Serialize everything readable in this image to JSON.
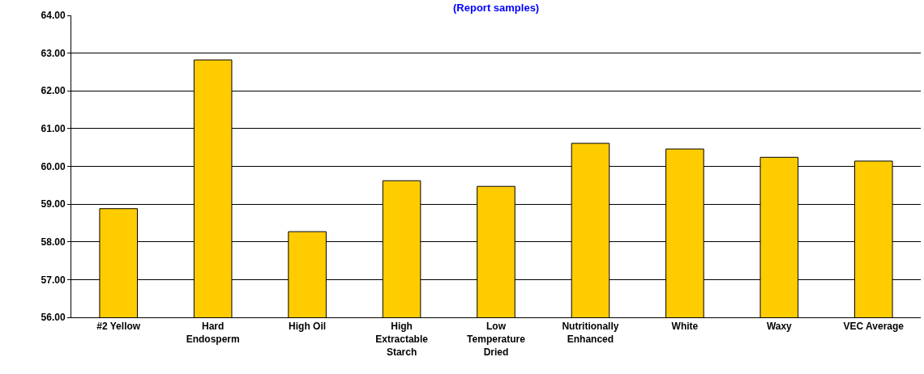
{
  "chart_data": {
    "type": "bar",
    "subtitle": "(Report samples)",
    "categories": [
      "#2 Yellow",
      "Hard Endosperm",
      "High Oil",
      "High Extractable Starch",
      "Low Temperature Dried",
      "Nutritionally Enhanced",
      "White",
      "Waxy",
      "VEC Average"
    ],
    "values": [
      58.88,
      62.82,
      58.27,
      59.62,
      59.47,
      60.61,
      60.46,
      60.24,
      60.14
    ],
    "color": "#ffcc00",
    "ylim": [
      56,
      64
    ],
    "yticks": [
      {
        "value": 56,
        "label": "56.00"
      },
      {
        "value": 57,
        "label": "57.00"
      },
      {
        "value": 58,
        "label": "58.00"
      },
      {
        "value": 59,
        "label": "59.00"
      },
      {
        "value": 60,
        "label": "60.00"
      },
      {
        "value": 61,
        "label": "61.00"
      },
      {
        "value": 62,
        "label": "62.00"
      },
      {
        "value": 63,
        "label": "63.00"
      },
      {
        "value": 64,
        "label": "64.00"
      }
    ],
    "grid": "y"
  }
}
